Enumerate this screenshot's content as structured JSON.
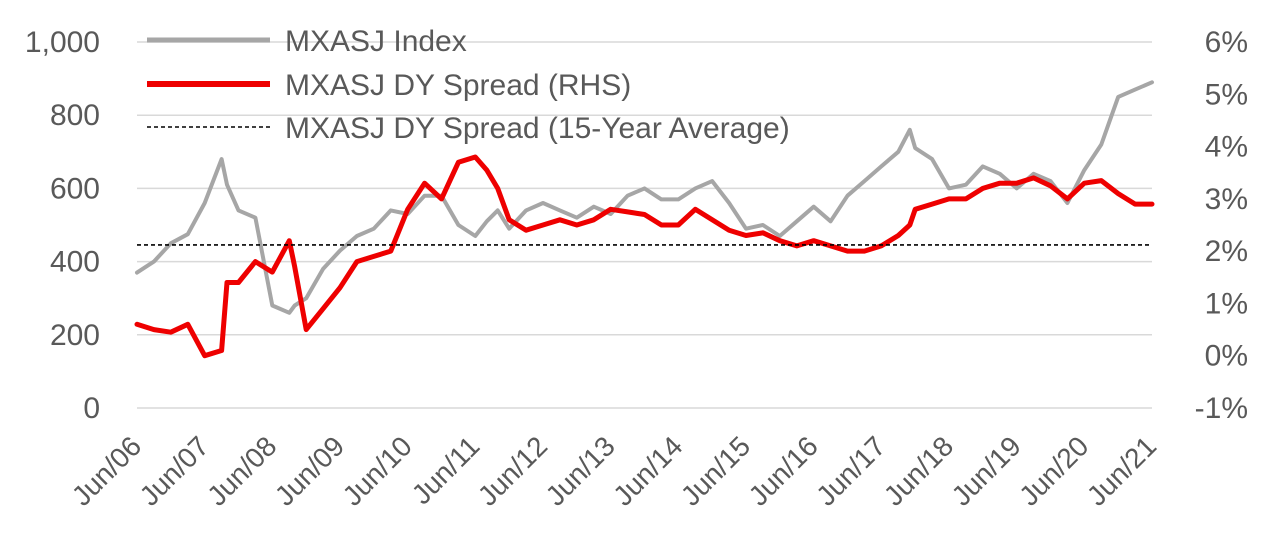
{
  "chart_data": {
    "type": "line",
    "title": "",
    "xlabel": "",
    "ylabel": "",
    "y2label": "",
    "grid": true,
    "legend_position": "top-left",
    "ylim": [
      0,
      1000
    ],
    "y2lim": [
      -1,
      6
    ],
    "yticks": [
      "0",
      "200",
      "400",
      "600",
      "800",
      "1,000"
    ],
    "y2ticks": [
      "-1%",
      "0%",
      "1%",
      "2%",
      "3%",
      "4%",
      "5%",
      "6%"
    ],
    "categories": [
      "Jun/06",
      "Jun/07",
      "Jun/08",
      "Jun/09",
      "Jun/10",
      "Jun/11",
      "Jun/12",
      "Jun/13",
      "Jun/14",
      "Jun/15",
      "Jun/16",
      "Jun/17",
      "Jun/18",
      "Jun/19",
      "Jun/20",
      "Jun/21"
    ],
    "colors": {
      "index": "#a6a6a6",
      "spread": "#ee0000",
      "average": "#000000",
      "grid": "#d9d9d9",
      "text": "#595959"
    },
    "series": [
      {
        "name": "MXASJ Index",
        "axis": "left",
        "style": "solid",
        "x": [
          2006.5,
          2006.75,
          2007.0,
          2007.25,
          2007.5,
          2007.75,
          2007.83,
          2008.0,
          2008.25,
          2008.5,
          2008.75,
          2008.83,
          2009.0,
          2009.25,
          2009.5,
          2009.75,
          2010.0,
          2010.25,
          2010.5,
          2010.75,
          2011.0,
          2011.25,
          2011.5,
          2011.67,
          2011.83,
          2012.0,
          2012.25,
          2012.5,
          2012.75,
          2013.0,
          2013.25,
          2013.5,
          2013.75,
          2014.0,
          2014.25,
          2014.5,
          2014.75,
          2015.0,
          2015.25,
          2015.5,
          2015.75,
          2016.0,
          2016.25,
          2016.5,
          2016.75,
          2017.0,
          2017.25,
          2017.5,
          2017.75,
          2017.92,
          2018.0,
          2018.25,
          2018.5,
          2018.75,
          2019.0,
          2019.25,
          2019.5,
          2019.75,
          2020.0,
          2020.25,
          2020.5,
          2020.75,
          2021.0,
          2021.25,
          2021.5
        ],
        "y": [
          370,
          400,
          450,
          475,
          560,
          680,
          610,
          540,
          520,
          280,
          260,
          280,
          300,
          380,
          430,
          470,
          490,
          540,
          530,
          580,
          580,
          500,
          470,
          510,
          540,
          490,
          540,
          560,
          540,
          520,
          550,
          530,
          580,
          600,
          570,
          570,
          600,
          620,
          560,
          490,
          500,
          470,
          510,
          550,
          510,
          580,
          620,
          660,
          700,
          760,
          710,
          680,
          600,
          610,
          660,
          640,
          600,
          640,
          620,
          560,
          650,
          720,
          850,
          870,
          890
        ]
      },
      {
        "name": "MXASJ DY Spread (RHS)",
        "axis": "right",
        "style": "solid",
        "x": [
          2006.5,
          2006.75,
          2007.0,
          2007.25,
          2007.5,
          2007.75,
          2007.83,
          2008.0,
          2008.25,
          2008.5,
          2008.75,
          2008.83,
          2009.0,
          2009.25,
          2009.5,
          2009.75,
          2010.0,
          2010.25,
          2010.5,
          2010.75,
          2011.0,
          2011.25,
          2011.5,
          2011.67,
          2011.83,
          2012.0,
          2012.25,
          2012.5,
          2012.75,
          2013.0,
          2013.25,
          2013.5,
          2013.75,
          2014.0,
          2014.25,
          2014.5,
          2014.75,
          2015.0,
          2015.25,
          2015.5,
          2015.75,
          2016.0,
          2016.25,
          2016.5,
          2016.75,
          2017.0,
          2017.25,
          2017.5,
          2017.75,
          2017.92,
          2018.0,
          2018.25,
          2018.5,
          2018.75,
          2019.0,
          2019.25,
          2019.5,
          2019.75,
          2020.0,
          2020.25,
          2020.5,
          2020.75,
          2021.0,
          2021.25,
          2021.5
        ],
        "y": [
          0.6,
          0.5,
          0.45,
          0.6,
          0.0,
          0.1,
          1.4,
          1.4,
          1.8,
          1.6,
          2.2,
          1.7,
          0.5,
          0.9,
          1.3,
          1.8,
          1.9,
          2.0,
          2.8,
          3.3,
          3.0,
          3.7,
          3.8,
          3.55,
          3.2,
          2.6,
          2.4,
          2.5,
          2.6,
          2.5,
          2.6,
          2.8,
          2.75,
          2.7,
          2.5,
          2.5,
          2.8,
          2.6,
          2.4,
          2.3,
          2.35,
          2.2,
          2.1,
          2.2,
          2.1,
          2.0,
          2.0,
          2.1,
          2.3,
          2.5,
          2.8,
          2.9,
          3.0,
          3.0,
          3.2,
          3.3,
          3.3,
          3.4,
          3.25,
          3.0,
          3.3,
          3.35,
          3.1,
          2.9,
          2.9
        ]
      },
      {
        "name": "MXASJ DY Spread (15-Year Average)",
        "axis": "right",
        "style": "dashed",
        "x": [
          2006.5,
          2021.5
        ],
        "y": [
          2.12,
          2.12
        ]
      }
    ]
  }
}
